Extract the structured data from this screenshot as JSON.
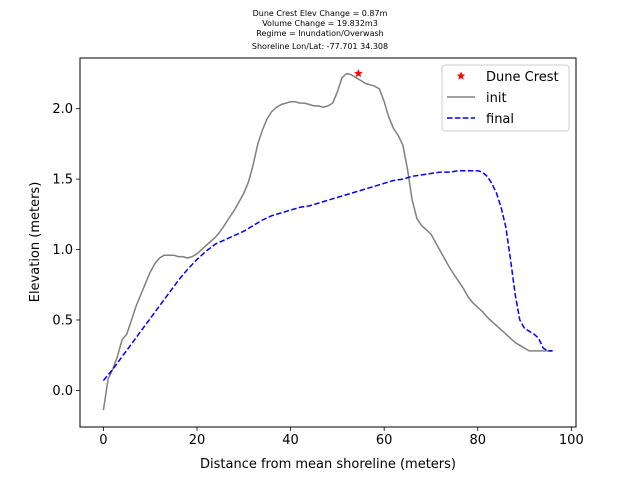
{
  "chart_data": {
    "type": "line",
    "title_lines": [
      "Dune Crest Elev Change = 0.87m",
      "Volume Change = 19.832m3",
      "Regime = Inundation/Overwash",
      "Shoreline Lon/Lat: -77.701 34.308"
    ],
    "xlabel": "Distance from mean shoreline (meters)",
    "ylabel": "Elevation (meters)",
    "xlim": [
      -5,
      101
    ],
    "ylim": [
      -0.26,
      2.36
    ],
    "xticks": [
      0,
      20,
      40,
      60,
      80,
      100
    ],
    "yticks": [
      0.0,
      0.5,
      1.0,
      1.5,
      2.0
    ],
    "xtick_labels": [
      "0",
      "20",
      "40",
      "60",
      "80",
      "100"
    ],
    "ytick_labels": [
      "0.0",
      "0.5",
      "1.0",
      "1.5",
      "2.0"
    ],
    "grid": false,
    "legend_position": "top-right",
    "series": [
      {
        "name": "init",
        "color": "#808080",
        "style": "solid",
        "x": [
          0,
          1,
          2,
          3,
          4,
          5,
          6,
          7,
          8,
          9,
          10,
          11,
          12,
          13,
          14,
          15,
          16,
          17,
          18,
          19,
          20,
          21,
          22,
          23,
          24,
          25,
          26,
          27,
          28,
          29,
          30,
          31,
          32,
          33,
          34,
          35,
          36,
          37,
          38,
          39,
          40,
          41,
          42,
          43,
          44,
          45,
          46,
          47,
          48,
          49,
          50,
          51,
          52,
          53,
          54,
          55,
          56,
          57,
          58,
          59,
          60,
          61,
          62,
          63,
          64,
          65,
          66,
          67,
          68,
          69,
          70,
          71,
          72,
          73,
          74,
          75,
          76,
          77,
          78,
          79,
          80,
          81,
          82,
          83,
          84,
          85,
          86,
          87,
          88,
          89,
          90,
          91,
          92,
          93,
          94,
          95,
          96
        ],
        "y": [
          -0.14,
          0.08,
          0.15,
          0.24,
          0.36,
          0.4,
          0.5,
          0.6,
          0.68,
          0.76,
          0.84,
          0.9,
          0.94,
          0.96,
          0.96,
          0.96,
          0.95,
          0.95,
          0.94,
          0.95,
          0.97,
          1.0,
          1.03,
          1.06,
          1.09,
          1.13,
          1.18,
          1.23,
          1.28,
          1.34,
          1.4,
          1.48,
          1.6,
          1.75,
          1.85,
          1.93,
          1.98,
          2.01,
          2.03,
          2.04,
          2.05,
          2.05,
          2.04,
          2.04,
          2.03,
          2.02,
          2.02,
          2.01,
          2.02,
          2.04,
          2.12,
          2.22,
          2.25,
          2.24,
          2.22,
          2.2,
          2.18,
          2.17,
          2.16,
          2.14,
          2.05,
          1.94,
          1.86,
          1.81,
          1.74,
          1.57,
          1.35,
          1.22,
          1.17,
          1.14,
          1.11,
          1.05,
          0.99,
          0.93,
          0.87,
          0.82,
          0.77,
          0.72,
          0.66,
          0.62,
          0.59,
          0.56,
          0.52,
          0.49,
          0.46,
          0.43,
          0.4,
          0.37,
          0.34,
          0.32,
          0.3,
          0.28,
          0.28,
          0.28,
          0.28,
          0.28,
          0.28
        ]
      },
      {
        "name": "final",
        "color": "#0000ff",
        "style": "dashed",
        "x": [
          0,
          2,
          4,
          6,
          8,
          10,
          12,
          14,
          16,
          18,
          20,
          22,
          24,
          26,
          28,
          30,
          32,
          34,
          36,
          38,
          40,
          42,
          44,
          46,
          48,
          50,
          52,
          54,
          56,
          58,
          60,
          62,
          64,
          66,
          68,
          70,
          72,
          74,
          76,
          78,
          80,
          81,
          82,
          83,
          84,
          85,
          86,
          87,
          88,
          89,
          90,
          91,
          92,
          93,
          94,
          95,
          96
        ],
        "y": [
          0.07,
          0.15,
          0.24,
          0.33,
          0.42,
          0.51,
          0.6,
          0.69,
          0.78,
          0.86,
          0.93,
          0.99,
          1.04,
          1.07,
          1.1,
          1.13,
          1.17,
          1.21,
          1.24,
          1.26,
          1.28,
          1.3,
          1.31,
          1.33,
          1.35,
          1.37,
          1.39,
          1.41,
          1.43,
          1.45,
          1.47,
          1.49,
          1.5,
          1.52,
          1.53,
          1.54,
          1.55,
          1.55,
          1.56,
          1.56,
          1.56,
          1.55,
          1.52,
          1.47,
          1.4,
          1.3,
          1.16,
          0.93,
          0.68,
          0.5,
          0.44,
          0.42,
          0.4,
          0.37,
          0.3,
          0.28,
          0.28
        ]
      }
    ],
    "markers": [
      {
        "name": "Dune Crest",
        "color": "#ff0000",
        "symbol": "star",
        "x": 54.5,
        "y": 2.25
      }
    ]
  }
}
